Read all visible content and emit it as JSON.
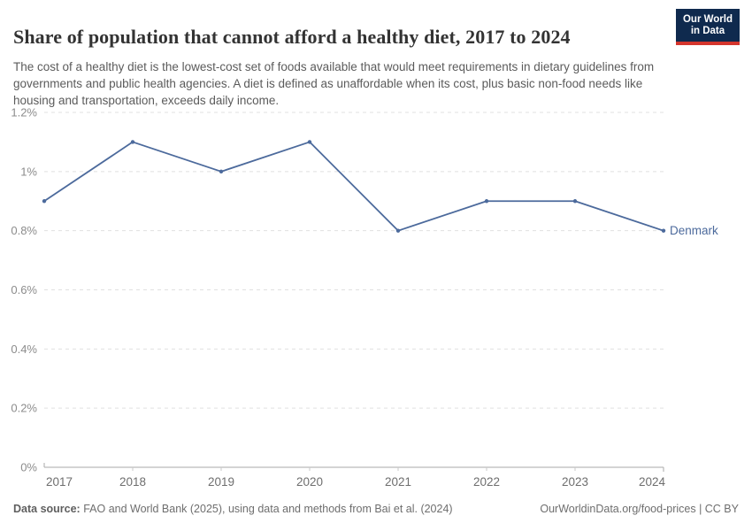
{
  "header": {
    "title": "Share of population that cannot afford a healthy diet, 2017 to 2024",
    "subtitle": "The cost of a healthy diet is the lowest-cost set of foods available that would meet requirements in dietary guidelines from governments and public health agencies. A diet is defined as unaffordable when its cost, plus basic non-food needs like housing and transportation, exceeds daily income.",
    "logo_line1": "Our World",
    "logo_line2": "in Data"
  },
  "chart_data": {
    "type": "line",
    "title": "Share of population that cannot afford a healthy diet",
    "x": [
      2017,
      2018,
      2019,
      2020,
      2021,
      2022,
      2023,
      2024
    ],
    "series": [
      {
        "name": "Denmark",
        "values": [
          0.9,
          1.1,
          1.0,
          1.1,
          0.8,
          0.9,
          0.9,
          0.8
        ]
      }
    ],
    "unit": "%",
    "ylim": [
      0,
      1.2
    ],
    "yticks": [
      0,
      0.2,
      0.4,
      0.6,
      0.8,
      1.0,
      1.2
    ],
    "ytick_labels": [
      "0%",
      "0.2%",
      "0.4%",
      "0.6%",
      "0.8%",
      "1%",
      "1.2%"
    ],
    "grid": true,
    "legend_position": "end-of-line",
    "line_color": "#4c6a9c",
    "grid_color": "#e0e0e0",
    "axis_color": "#a8a8a8",
    "tick_label_color": "#8c8c8c",
    "x_label_color": "#6e6e6e"
  },
  "footer": {
    "data_source_label": "Data source:",
    "data_source_text": "FAO and World Bank (2025), using data and methods from Bai et al. (2024)",
    "link_text": "OurWorldinData.org/food-prices | CC BY"
  }
}
